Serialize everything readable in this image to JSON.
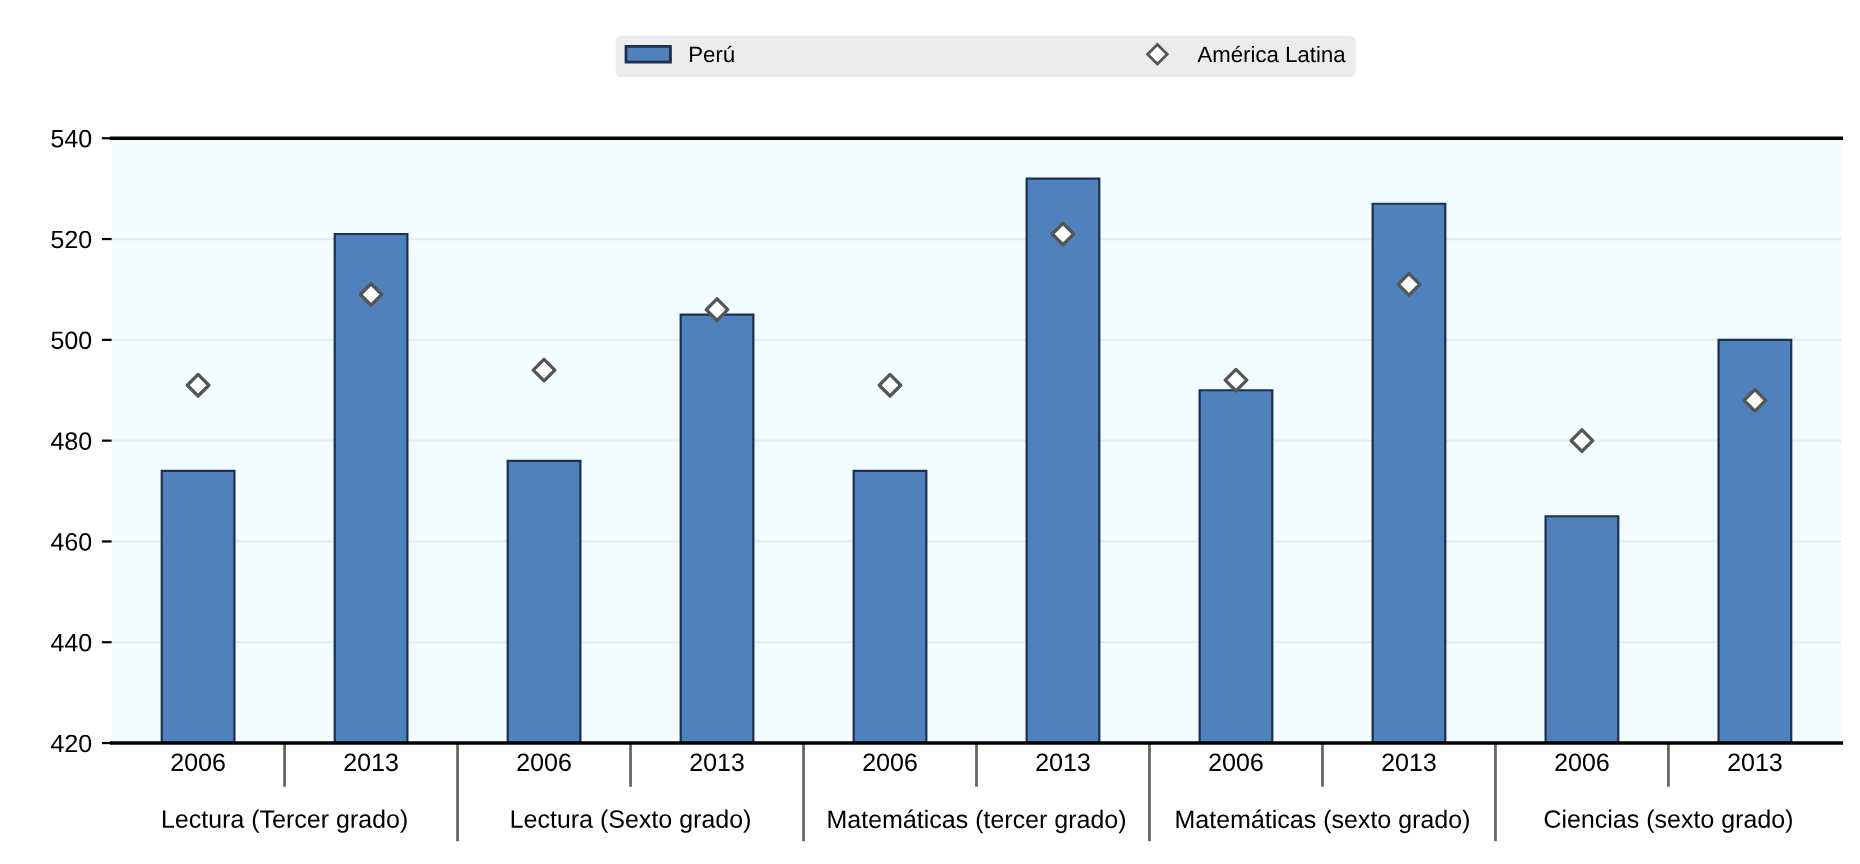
{
  "chart_data": {
    "type": "bar",
    "categories": [
      "2006",
      "2013",
      "2006",
      "2013",
      "2006",
      "2013",
      "2006",
      "2013",
      "2006",
      "2013"
    ],
    "series": [
      {
        "name": "Perú",
        "color": "#4f81bd",
        "values": [
          474,
          521,
          476,
          505,
          474,
          532,
          490,
          527,
          465,
          500
        ]
      },
      {
        "name": "América Latina",
        "type": "scatter",
        "color": "#ffffff",
        "marker": "diamond",
        "values": [
          491,
          509,
          494,
          506,
          491,
          521,
          492,
          511,
          480,
          488
        ]
      }
    ],
    "annotations": [
      "Lectura (Tercer grado)",
      "Lectura (Sexto grado)",
      "Matemáticas (tercer grado)",
      "Matemáticas (sexto grado)",
      "Ciencias (sexto grado)"
    ],
    "ylim": [
      420,
      540
    ],
    "yticks": [
      420,
      440,
      460,
      480,
      500,
      520,
      540
    ],
    "grid": "y",
    "legend": "top"
  }
}
